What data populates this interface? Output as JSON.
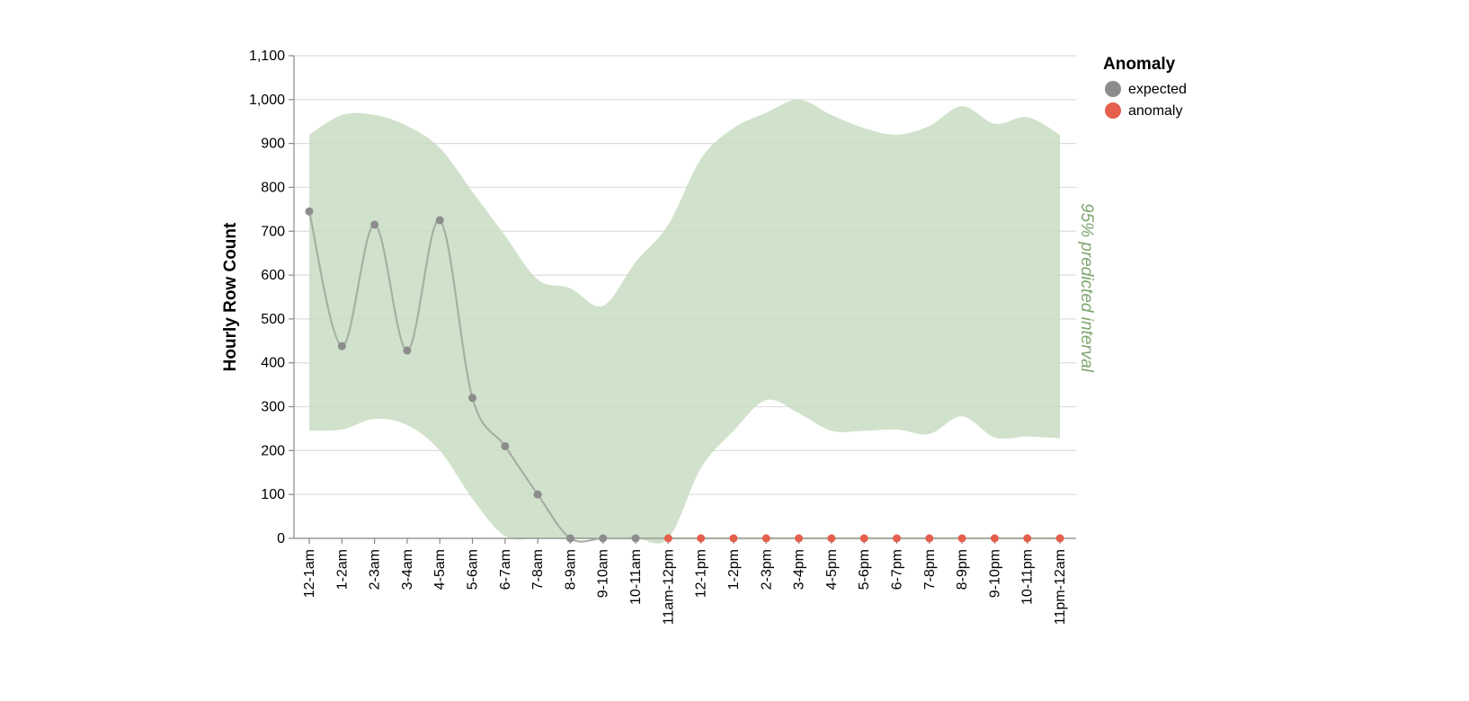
{
  "chart_data": {
    "type": "line",
    "categories": [
      "12-1am",
      "1-2am",
      "2-3am",
      "3-4am",
      "4-5am",
      "5-6am",
      "6-7am",
      "7-8am",
      "8-9am",
      "9-10am",
      "10-11am",
      "11am-12pm",
      "12-1pm",
      "1-2pm",
      "2-3pm",
      "3-4pm",
      "4-5pm",
      "5-6pm",
      "6-7pm",
      "7-8pm",
      "8-9pm",
      "9-10pm",
      "10-11pm",
      "11pm-12am"
    ],
    "series": [
      {
        "values": [
          745,
          438,
          715,
          428,
          725,
          320,
          210,
          100,
          0,
          0,
          0,
          0,
          0,
          0,
          0,
          0,
          0,
          0,
          0,
          0,
          0,
          0,
          0,
          0
        ],
        "status": [
          "expected",
          "expected",
          "expected",
          "expected",
          "expected",
          "expected",
          "expected",
          "expected",
          "expected",
          "expected",
          "expected",
          "anomaly",
          "anomaly",
          "anomaly",
          "anomaly",
          "anomaly",
          "anomaly",
          "anomaly",
          "anomaly",
          "anomaly",
          "anomaly",
          "anomaly",
          "anomaly",
          "anomaly"
        ]
      }
    ],
    "interval": {
      "label": "95% predicted interval",
      "upper": [
        920,
        965,
        965,
        940,
        890,
        790,
        690,
        590,
        570,
        530,
        630,
        715,
        865,
        935,
        970,
        1000,
        965,
        935,
        920,
        940,
        985,
        945,
        960,
        920
      ],
      "lower": [
        245,
        248,
        272,
        258,
        200,
        90,
        5,
        0,
        0,
        0,
        0,
        0,
        160,
        245,
        315,
        285,
        245,
        245,
        248,
        238,
        278,
        230,
        232,
        228
      ]
    },
    "ylabel": "Hourly Row Count",
    "xlabel": "",
    "ylim": [
      0,
      1100
    ],
    "yticks": [
      0,
      100,
      200,
      300,
      400,
      500,
      600,
      700,
      800,
      900,
      1000,
      1100
    ],
    "ytick_labels": [
      "0",
      "100",
      "200",
      "300",
      "400",
      "500",
      "600",
      "700",
      "800",
      "900",
      "1,000",
      "1,100"
    ],
    "grid": true,
    "legend": {
      "title": "Anomaly",
      "position": "right",
      "items": [
        {
          "label": "expected",
          "color": "#8c8c8c"
        },
        {
          "label": "anomaly",
          "color": "#e45f4c"
        }
      ]
    },
    "colors": {
      "band": "#c9ddc3",
      "band_label": "#7fa771",
      "line": "#a6b0a1",
      "expected": "#8c8c8c",
      "anomaly": "#e45f4c",
      "grid": "#dddddd",
      "axis": "#888888"
    }
  }
}
